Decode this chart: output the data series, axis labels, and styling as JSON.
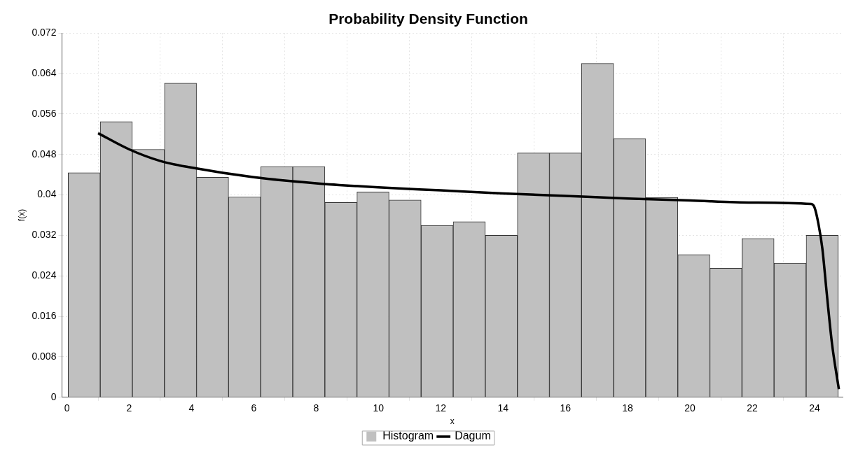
{
  "chart_data": {
    "type": "histogram",
    "title": "Probability Density Function",
    "xlabel": "x",
    "ylabel": "f(x)",
    "xlim": [
      -0.16,
      24.9
    ],
    "xticks": [
      0,
      2,
      4,
      6,
      8,
      10,
      12,
      14,
      16,
      18,
      20,
      22,
      24
    ],
    "ylim": [
      0,
      0.072
    ],
    "yticks": [
      0,
      0.008,
      0.016,
      0.024,
      0.032,
      0.04,
      0.048,
      0.056,
      0.064,
      0.072
    ],
    "grid": true,
    "legend": "bottom",
    "series": [
      {
        "name": "Histogram",
        "color": "#c0c0c0",
        "bins": [
          0.04,
          1.07,
          2.1,
          3.13,
          4.16,
          5.19,
          6.22,
          7.25,
          8.28,
          9.31,
          10.34,
          11.37,
          12.4,
          13.43,
          14.46,
          15.49,
          16.52,
          17.55,
          18.58,
          19.61,
          20.64,
          21.67,
          22.7,
          23.73,
          24.76
        ],
        "values": [
          0.0444,
          0.0545,
          0.049,
          0.0621,
          0.0435,
          0.0396,
          0.0456,
          0.0456,
          0.0385,
          0.0406,
          0.039,
          0.034,
          0.0347,
          0.032,
          0.0483,
          0.0483,
          0.066,
          0.0511,
          0.0395,
          0.0282,
          0.0255,
          0.0314,
          0.0265,
          0.032
        ]
      },
      {
        "type": "line",
        "name": "Dagum",
        "color": "#000000",
        "x": [
          1,
          2,
          3,
          4,
          6,
          8,
          10,
          12,
          14,
          16,
          18,
          20,
          22,
          23.89,
          24,
          24.13,
          24.25,
          24.4,
          24.56,
          24.78
        ],
        "values": [
          0.0522,
          0.049,
          0.0467,
          0.0454,
          0.0435,
          0.0423,
          0.0415,
          0.0409,
          0.0403,
          0.0398,
          0.0393,
          0.0389,
          0.0385,
          0.0382,
          0.0375,
          0.0341,
          0.0294,
          0.02,
          0.0106,
          0.0016
        ]
      }
    ]
  }
}
